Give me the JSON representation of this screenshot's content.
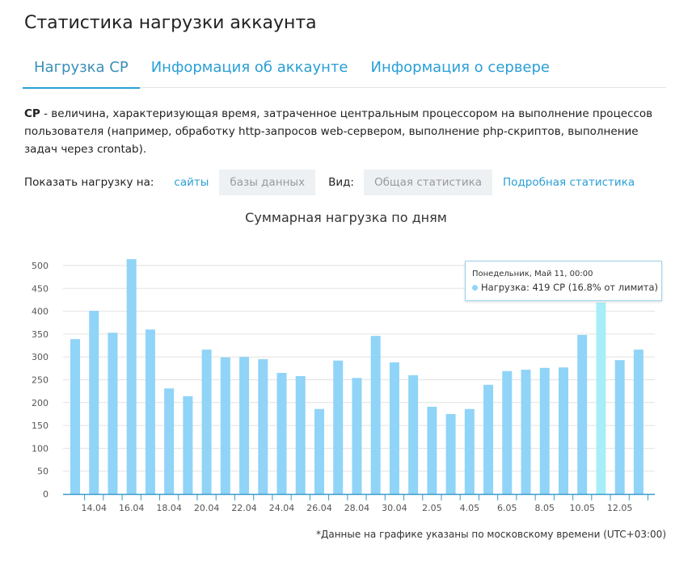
{
  "title": "Статистика нагрузки аккаунта",
  "tabs": [
    {
      "label": "Нагрузка CP"
    },
    {
      "label": "Информация об аккаунте"
    },
    {
      "label": "Информация о сервере"
    }
  ],
  "description": {
    "term": "CP",
    "text": " - величина, характеризующая время, затраченное центральным процессором на выполнение процессов пользователя (например, обработку http-запросов web-сервером, выполнение php-скриптов, выполнение задач через crontab)."
  },
  "filters": {
    "show_label": "Показать нагрузку на:",
    "sites": "сайты",
    "databases": "базы данных",
    "view_label": "Вид:",
    "general": "Общая статистика",
    "detailed": "Подробная статистика"
  },
  "tooltip": {
    "header": "Понедельник, Май 11, 00:00",
    "body": "Нагрузка: 419 CP (16.8% от лимита)"
  },
  "note": "*Данные на графике указаны по московскому времени (UTC+03:00)",
  "colors": {
    "bar": "#90d4f7",
    "bar_hover": "#a8eef8",
    "accent": "#2a9fd6"
  },
  "chart_data": {
    "type": "bar",
    "title": "Суммарная нагрузка по дням",
    "categories": [
      "13.04",
      "14.04",
      "15.04",
      "16.04",
      "17.04",
      "18.04",
      "19.04",
      "20.04",
      "21.04",
      "22.04",
      "23.04",
      "24.04",
      "25.04",
      "26.04",
      "27.04",
      "28.04",
      "29.04",
      "30.04",
      "1.05",
      "2.05",
      "3.05",
      "4.05",
      "5.05",
      "6.05",
      "7.05",
      "8.05",
      "9.05",
      "10.05",
      "11.05",
      "12.05",
      "13.05"
    ],
    "values": [
      339,
      401,
      353,
      514,
      360,
      231,
      214,
      316,
      299,
      300,
      295,
      265,
      258,
      186,
      292,
      254,
      346,
      288,
      260,
      191,
      175,
      186,
      239,
      269,
      272,
      276,
      277,
      348,
      419,
      293,
      316
    ],
    "highlighted_index": 28,
    "tick_labels": [
      "14.04",
      "16.04",
      "18.04",
      "20.04",
      "22.04",
      "24.04",
      "26.04",
      "28.04",
      "30.04",
      "2.05",
      "4.05",
      "6.05",
      "8.05",
      "10.05",
      "12.05"
    ],
    "yticks": [
      0,
      50,
      100,
      150,
      200,
      250,
      300,
      350,
      400,
      450,
      500
    ],
    "ylim": [
      0,
      540
    ],
    "grid": true
  }
}
